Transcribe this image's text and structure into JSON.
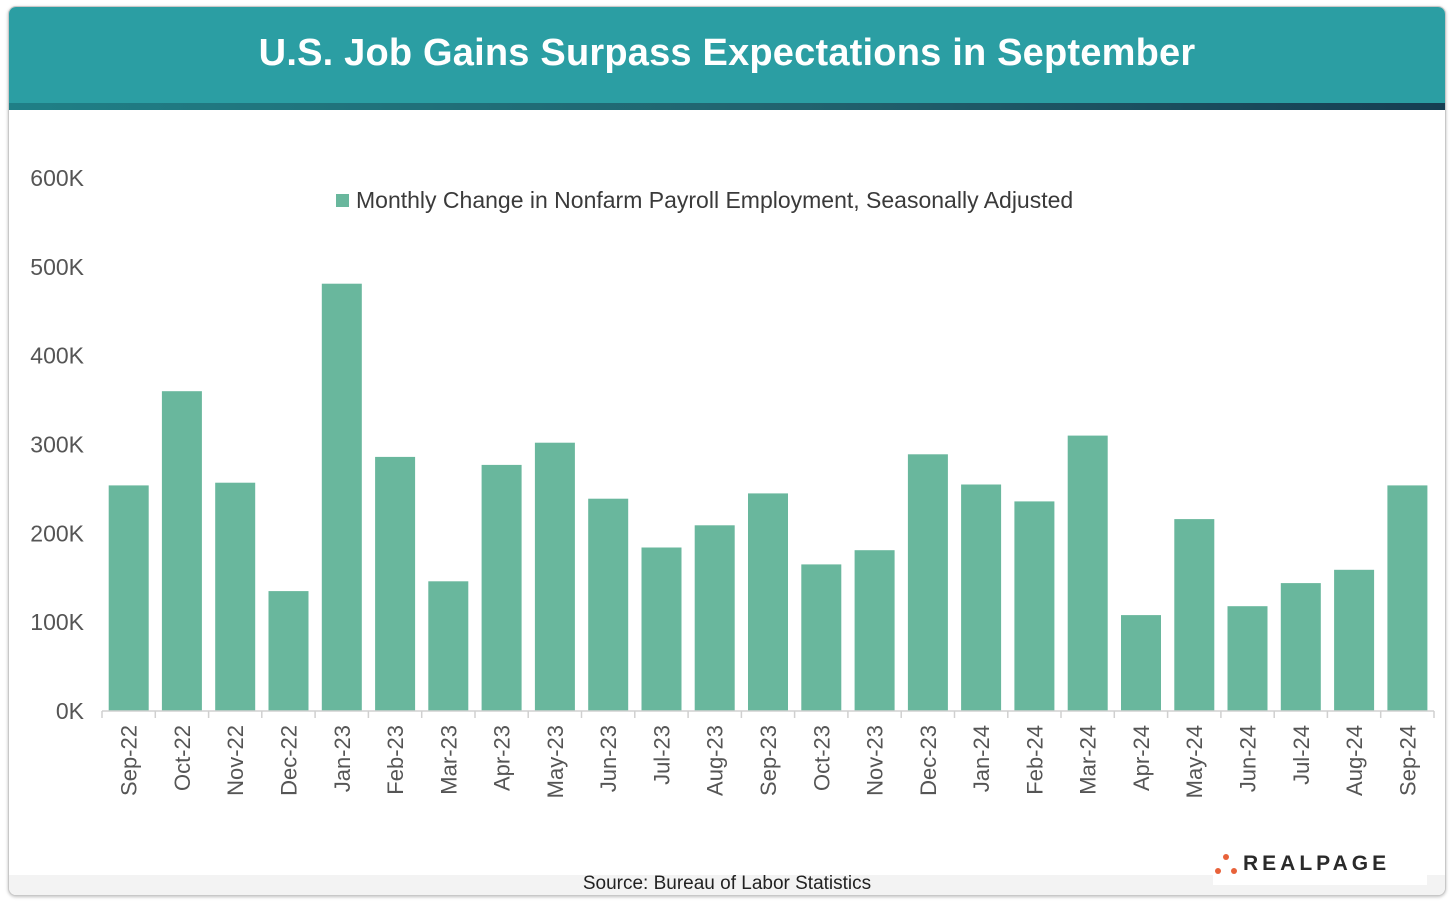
{
  "header": {
    "title": "U.S. Job Gains Surpass Expectations in September"
  },
  "footer": {
    "source": "Source: Bureau of Labor Statistics",
    "logo_text": "REALPAGE",
    "logo_icon": "dots-triangle-icon"
  },
  "colors": {
    "header_bg": "#2b9ea3",
    "bar": "#69b79d",
    "logo_dots": "#e8623a"
  },
  "chart_data": {
    "type": "bar",
    "title": "",
    "xlabel": "",
    "ylabel": "",
    "legend": "Monthly Change in Nonfarm Payroll Employment, Seasonally Adjusted",
    "legend_position": "top-center",
    "categories": [
      "Sep-22",
      "Oct-22",
      "Nov-22",
      "Dec-22",
      "Jan-23",
      "Feb-23",
      "Mar-23",
      "Apr-23",
      "May-23",
      "Jun-23",
      "Jul-23",
      "Aug-23",
      "Sep-23",
      "Oct-23",
      "Nov-23",
      "Dec-23",
      "Jan-24",
      "Feb-24",
      "Mar-24",
      "Apr-24",
      "May-24",
      "Jun-24",
      "Jul-24",
      "Aug-24",
      "Sep-24"
    ],
    "series": [
      {
        "name": "Monthly Change in Nonfarm Payroll Employment, Seasonally Adjusted",
        "values": [
          254000,
          360000,
          257000,
          135000,
          481000,
          286000,
          146000,
          277000,
          302000,
          239000,
          184000,
          209000,
          245000,
          165000,
          181000,
          289000,
          255000,
          236000,
          310000,
          108000,
          216000,
          118000,
          144000,
          159000,
          254000
        ]
      }
    ],
    "y_ticks": [
      "0K",
      "100K",
      "200K",
      "300K",
      "400K",
      "500K",
      "600K"
    ],
    "ylim": [
      0,
      600000
    ],
    "grid": false
  }
}
